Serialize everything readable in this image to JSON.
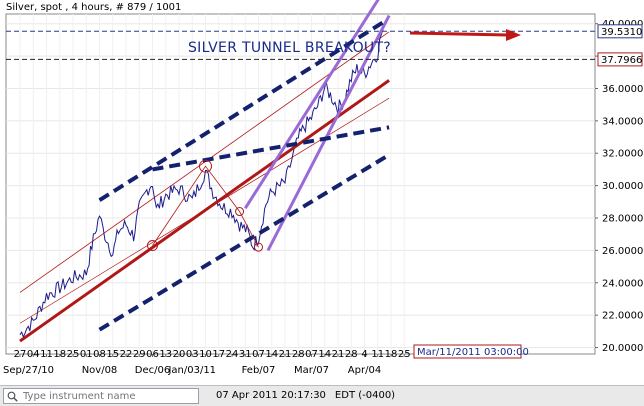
{
  "header": {
    "instrument": "Silver, spot",
    "timeframe": "4 hours",
    "counter": "# 879 / 1001",
    "title_text": "Silver, spot , 4 hours, # 879 / 1001"
  },
  "annotation": {
    "text": "SILVER TUNNEL BREAKOUT?"
  },
  "price_labels": {
    "upper": "39.5310",
    "lower": "37.7966"
  },
  "cursor_date": "Mar/11/2011 03:00:00",
  "status": {
    "datetime": "07 Apr 2011 20:17:30",
    "timezone": "EDT (-0400)"
  },
  "search": {
    "placeholder": "Type instrument name"
  },
  "colors": {
    "price_line": "#1c1c8c",
    "blue_channel": "#14226e",
    "red_channel": "#b01818",
    "purple_channel": "#9a6ad6",
    "arrow": "#c01818",
    "price_box_border": "#b01818"
  },
  "chart_data": {
    "type": "line",
    "ylim": [
      19.6,
      40.6
    ],
    "yticks": [
      "40.0000",
      "38.0000",
      "36.0000",
      "34.0000",
      "32.0000",
      "30.0000",
      "28.0000",
      "26.0000",
      "24.0000",
      "22.0000",
      "20.0000"
    ],
    "ytick_values": [
      40,
      38,
      36,
      34,
      32,
      30,
      28,
      26,
      24,
      22,
      20
    ],
    "day_ticks": [
      "27",
      "04",
      "11",
      "18",
      "25",
      "01",
      "08",
      "15",
      "22",
      "29",
      "06",
      "13",
      "20",
      "03",
      "10",
      "17",
      "24",
      "31",
      "07",
      "14",
      "21",
      "28",
      "07",
      "14",
      "21",
      "28",
      "4",
      "11",
      "18",
      "25"
    ],
    "month_labels": [
      "Sep/27/10",
      "Nov/08",
      "Dec/06",
      "Jan/03/11",
      "Feb/07",
      "Mar/07",
      "Apr/04"
    ],
    "month_label_index": [
      0,
      6,
      10,
      13,
      18,
      22,
      26
    ],
    "x_start": "2010-09-27",
    "series": [
      {
        "x": [
          "2010-09-27",
          "2010-10-04",
          "2010-10-11",
          "2010-10-18",
          "2010-10-25",
          "2010-11-01",
          "2010-11-04",
          "2010-11-08",
          "2010-11-10",
          "2010-11-15",
          "2010-11-18",
          "2010-11-22",
          "2010-11-26",
          "2010-11-29",
          "2010-12-03",
          "2010-12-06",
          "2010-12-08",
          "2010-12-13",
          "2010-12-20",
          "2010-12-27",
          "2011-01-03",
          "2011-01-07",
          "2011-01-12",
          "2011-01-17",
          "2011-01-21",
          "2011-01-25",
          "2011-01-28",
          "2011-01-31",
          "2011-02-04",
          "2011-02-07",
          "2011-02-14",
          "2011-02-21",
          "2011-02-24",
          "2011-02-28",
          "2011-03-04",
          "2011-03-07",
          "2011-03-10",
          "2011-03-14",
          "2011-03-17",
          "2011-03-21",
          "2011-03-24",
          "2011-03-28",
          "2011-03-31",
          "2011-04-04",
          "2011-04-06",
          "2011-04-07"
        ],
        "y": [
          20.8,
          21.6,
          23.2,
          23.7,
          24.3,
          24.6,
          26.3,
          28.2,
          27.2,
          25.8,
          27.2,
          27.6,
          26.9,
          28.6,
          29.7,
          30.2,
          28.5,
          29.4,
          29.8,
          29.1,
          30.9,
          29.6,
          28.7,
          28.4,
          27.6,
          27.2,
          26.3,
          26.8,
          28.9,
          29.6,
          30.2,
          32.9,
          33.6,
          34.2,
          35.1,
          36.1,
          35.6,
          34.8,
          35.2,
          36.6,
          37.2,
          36.9,
          37.5,
          38.2,
          39.4,
          39.6
        ]
      }
    ],
    "channels": {
      "blue_dashed": [
        {
          "from": [
            "2010-11-08",
            29.1
          ],
          "to": [
            "2011-04-07",
            40.1
          ]
        },
        {
          "from": [
            "2010-12-06",
            31.0
          ],
          "to": [
            "2011-04-10",
            33.6
          ]
        },
        {
          "from": [
            "2010-11-08",
            21.1
          ],
          "to": [
            "2011-04-10",
            31.9
          ]
        }
      ],
      "red": [
        {
          "from": [
            "2010-09-27",
            20.4
          ],
          "to": [
            "2011-04-10",
            36.5
          ]
        }
      ],
      "purple": [
        {
          "from": [
            "2011-01-24",
            28.6
          ],
          "to": [
            "2011-04-07",
            42.0
          ]
        },
        {
          "from": [
            "2011-02-05",
            26.0
          ],
          "to": [
            "2011-04-10",
            40.5
          ]
        }
      ]
    }
  }
}
